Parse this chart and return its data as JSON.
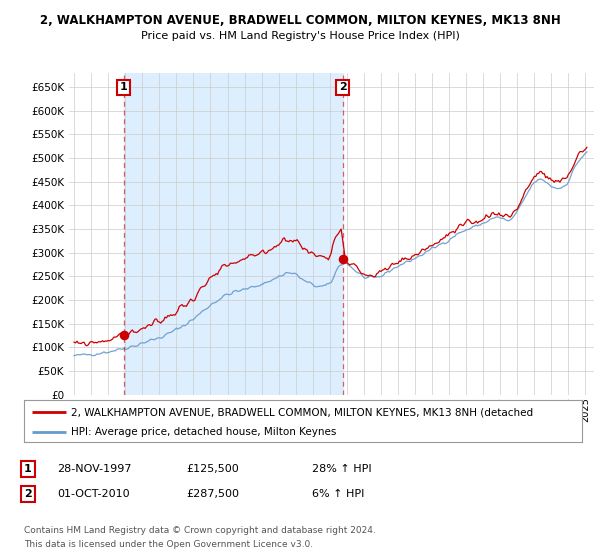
{
  "title": "2, WALKHAMPTON AVENUE, BRADWELL COMMON, MILTON KEYNES, MK13 8NH",
  "subtitle": "Price paid vs. HM Land Registry's House Price Index (HPI)",
  "ylabel_ticks": [
    0,
    50000,
    100000,
    150000,
    200000,
    250000,
    300000,
    350000,
    400000,
    450000,
    500000,
    550000,
    600000,
    650000
  ],
  "xlim_start": 1994.7,
  "xlim_end": 2025.5,
  "ylim": [
    0,
    680000
  ],
  "sale1_x": 1997.9,
  "sale1_y": 125500,
  "sale2_x": 2010.75,
  "sale2_y": 287500,
  "legend_line1": "2, WALKHAMPTON AVENUE, BRADWELL COMMON, MILTON KEYNES, MK13 8NH (detached",
  "legend_line2": "HPI: Average price, detached house, Milton Keynes",
  "footnote1": "Contains HM Land Registry data © Crown copyright and database right 2024.",
  "footnote2": "This data is licensed under the Open Government Licence v3.0.",
  "red_color": "#cc0000",
  "blue_color": "#6699cc",
  "shade_color": "#ddeeff",
  "grid_color": "#cccccc",
  "bg_color": "#ffffff"
}
